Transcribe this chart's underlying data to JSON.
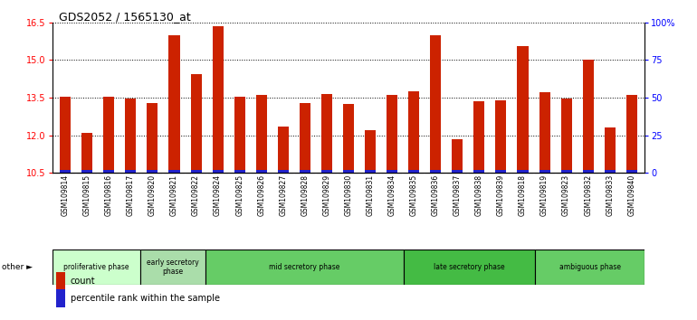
{
  "title": "GDS2052 / 1565130_at",
  "samples": [
    "GSM109814",
    "GSM109815",
    "GSM109816",
    "GSM109817",
    "GSM109820",
    "GSM109821",
    "GSM109822",
    "GSM109824",
    "GSM109825",
    "GSM109826",
    "GSM109827",
    "GSM109828",
    "GSM109829",
    "GSM109830",
    "GSM109831",
    "GSM109834",
    "GSM109835",
    "GSM109836",
    "GSM109837",
    "GSM109838",
    "GSM109839",
    "GSM109818",
    "GSM109819",
    "GSM109823",
    "GSM109832",
    "GSM109833",
    "GSM109840"
  ],
  "count_values": [
    13.55,
    12.1,
    13.55,
    13.45,
    13.3,
    16.0,
    14.45,
    16.35,
    13.55,
    13.6,
    12.35,
    13.3,
    13.65,
    13.25,
    12.2,
    13.6,
    13.75,
    16.0,
    11.85,
    13.35,
    13.4,
    15.55,
    13.7,
    13.45,
    15.0,
    12.3,
    13.6
  ],
  "percentile_values": [
    0.12,
    0.12,
    0.12,
    0.12,
    0.12,
    0.12,
    0.12,
    0.12,
    0.12,
    0.12,
    0.12,
    0.12,
    0.12,
    0.12,
    0.12,
    0.12,
    0.12,
    0.12,
    0.12,
    0.12,
    0.12,
    0.12,
    0.12,
    0.12,
    0.12,
    0.12,
    0.12
  ],
  "base_value": 10.5,
  "ylim_left": [
    10.5,
    16.5
  ],
  "yticks_left": [
    10.5,
    12.0,
    13.5,
    15.0,
    16.5
  ],
  "ylim_right": [
    0,
    100
  ],
  "yticks_right": [
    0,
    25,
    50,
    75,
    100
  ],
  "bar_color": "#cc2200",
  "blue_color": "#2222cc",
  "phase_data": [
    {
      "label": "proliferative phase",
      "count": 4,
      "color": "#ccffcc"
    },
    {
      "label": "early secretory\nphase",
      "count": 3,
      "color": "#aaddaa"
    },
    {
      "label": "mid secretory phase",
      "count": 9,
      "color": "#66cc66"
    },
    {
      "label": "late secretory phase",
      "count": 6,
      "color": "#44bb44"
    },
    {
      "label": "ambiguous phase",
      "count": 5,
      "color": "#66cc66"
    }
  ],
  "legend_count_color": "#cc2200",
  "legend_percentile_color": "#2222cc",
  "gray_bg": "#c8c8c8"
}
